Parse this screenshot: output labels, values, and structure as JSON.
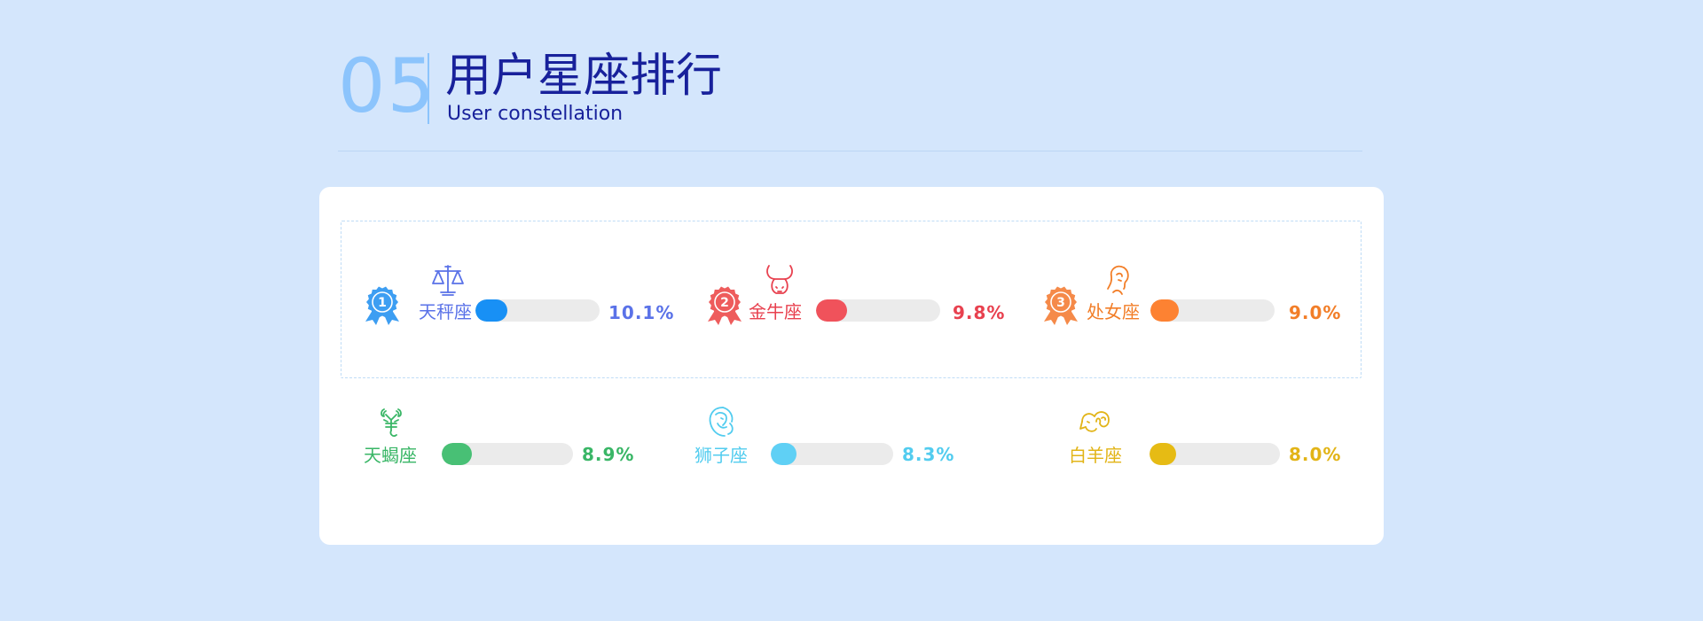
{
  "header": {
    "number": "05",
    "title": "用户星座排行",
    "subtitle": "User constellation"
  },
  "chart_data": {
    "type": "bar",
    "categories": [
      "天秤座",
      "金牛座",
      "处女座",
      "天蝎座",
      "狮子座",
      "白羊座"
    ],
    "values": [
      10.1,
      9.8,
      9.0,
      8.9,
      8.3,
      8.0
    ],
    "labels": [
      "10.1%",
      "9.8%",
      "9.0%",
      "8.9%",
      "8.3%",
      "8.0%"
    ],
    "ylim": [
      0,
      100
    ],
    "unit": "%",
    "ranks": [
      "1",
      "2",
      "3",
      "",
      "",
      ""
    ],
    "icons": [
      "libra-icon",
      "taurus-icon",
      "virgo-icon",
      "scorpio-icon",
      "leo-icon",
      "aries-icon"
    ],
    "colors": [
      "#1890f5",
      "#f0525b",
      "#fd8232",
      "#48c075",
      "#5fd0f5",
      "#e6bb14"
    ],
    "text_colors": [
      "#5a72e8",
      "#e8414f",
      "#f27e28",
      "#39b666",
      "#52ccef",
      "#e2b417"
    ],
    "medal_colors": [
      "#3d9ef2",
      "#ee5c5c",
      "#f58a49",
      "",
      "",
      ""
    ]
  }
}
